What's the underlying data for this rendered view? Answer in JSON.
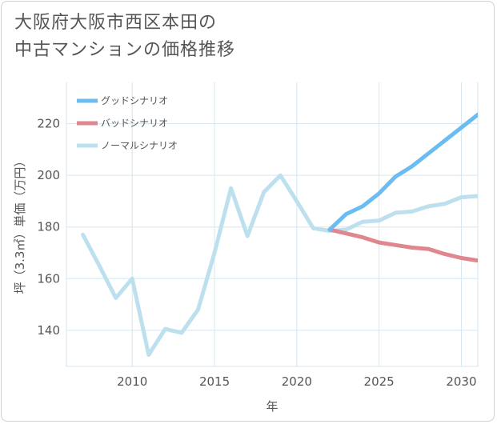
{
  "title_line1": "大阪府大阪市西区本田の",
  "title_line2": "中古マンションの価格推移",
  "colors": {
    "good": "#6bbcf0",
    "bad": "#e0868f",
    "normal": "#bde0ee",
    "grid": "#d5e6f0",
    "text": "#555555"
  },
  "chart_data": {
    "type": "line",
    "title": "大阪府大阪市西区本田の中古マンションの価格推移",
    "xlabel": "年",
    "ylabel": "坪（3.3㎡）単価（万円）",
    "xlim": [
      2006,
      2031
    ],
    "ylim": [
      126,
      236
    ],
    "xticks": [
      2010,
      2015,
      2020,
      2025,
      2030
    ],
    "yticks": [
      140,
      160,
      180,
      200,
      220
    ],
    "legend_position": "top-left",
    "series": [
      {
        "name": "グッドシナリオ",
        "color": "#6bbcf0",
        "x": [
          2022,
          2023,
          2024,
          2025,
          2026,
          2027,
          2028,
          2029,
          2030,
          2031
        ],
        "y": [
          179,
          185,
          188,
          193,
          199.5,
          203.5,
          208.5,
          213.5,
          218.5,
          223.5
        ]
      },
      {
        "name": "バッドシナリオ",
        "color": "#e0868f",
        "x": [
          2022,
          2023,
          2024,
          2025,
          2026,
          2027,
          2028,
          2029,
          2030,
          2031
        ],
        "y": [
          179,
          177.5,
          176,
          174,
          173,
          172,
          171.5,
          169.5,
          168,
          167
        ]
      },
      {
        "name": "ノーマルシナリオ",
        "color": "#bde0ee",
        "x": [
          2007,
          2008,
          2009,
          2010,
          2011,
          2012,
          2013,
          2014,
          2015,
          2016,
          2017,
          2018,
          2019,
          2020,
          2021,
          2022,
          2023,
          2024,
          2025,
          2026,
          2027,
          2028,
          2029,
          2030,
          2031
        ],
        "y": [
          177,
          165,
          152.5,
          160,
          130.5,
          140.5,
          139,
          148,
          170,
          195,
          176.5,
          193.5,
          200,
          190,
          179.5,
          178.5,
          179,
          182,
          182.5,
          185.5,
          186,
          188,
          189,
          191.5,
          192
        ]
      }
    ]
  }
}
